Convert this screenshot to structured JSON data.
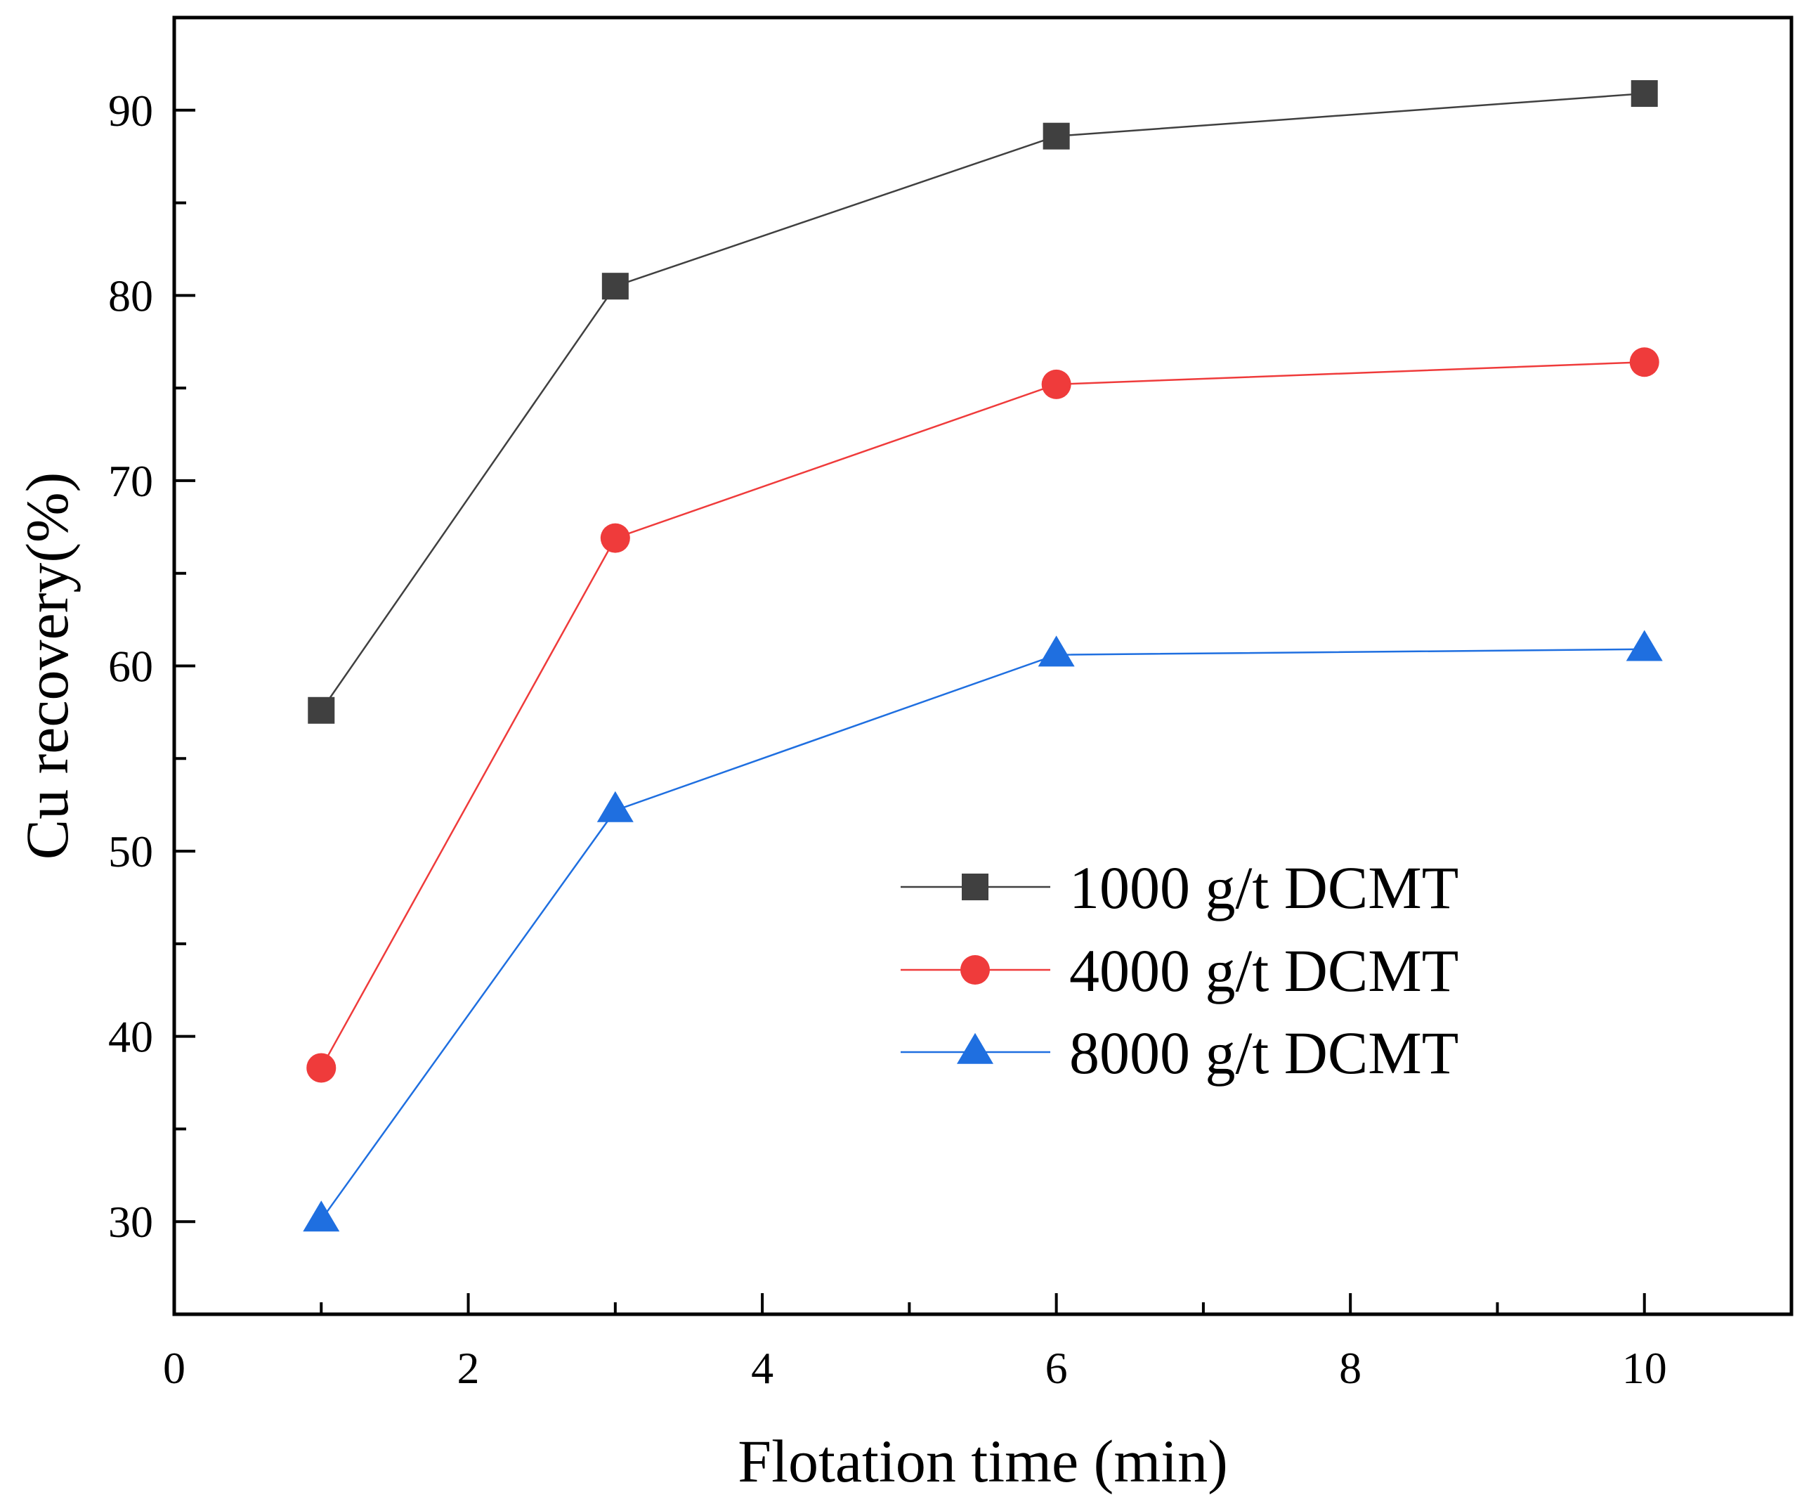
{
  "chart_data": {
    "type": "line",
    "xlabel": "Flotation time (min)",
    "ylabel": "Cu recovery(%)",
    "xlim": [
      0,
      11
    ],
    "ylim": [
      25,
      95
    ],
    "x_ticks": [
      0,
      2,
      4,
      6,
      8,
      10
    ],
    "y_ticks": [
      30,
      40,
      50,
      60,
      70,
      80,
      90
    ],
    "x": [
      1,
      3,
      6,
      10
    ],
    "grid": false,
    "legend_position": "lower-right",
    "series": [
      {
        "name": "1000 g/t DCMT",
        "marker": "square",
        "color": "#404040",
        "values": [
          57.6,
          80.5,
          88.6,
          90.9
        ]
      },
      {
        "name": "4000 g/t DCMT",
        "marker": "circle",
        "color": "#ef3b3b",
        "values": [
          38.3,
          66.9,
          75.2,
          76.4
        ]
      },
      {
        "name": "8000 g/t DCMT",
        "marker": "triangle",
        "color": "#1f6fe0",
        "values": [
          30.1,
          52.2,
          60.6,
          60.9
        ]
      }
    ]
  }
}
